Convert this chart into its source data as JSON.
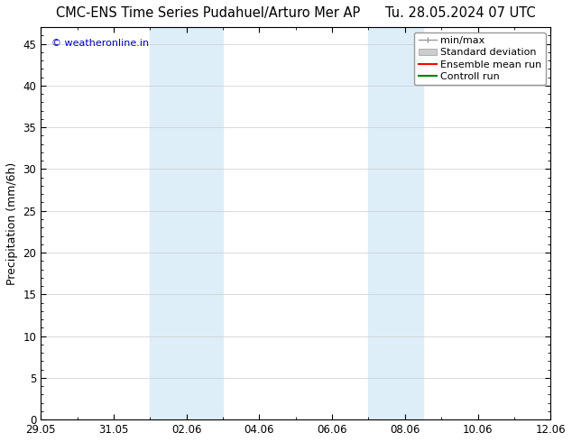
{
  "title": "CMC-ENS Time Series Pudahuel/Arturo Mer AP",
  "date_label": "Tu. 28.05.2024 07 UTC",
  "ylabel": "Precipitation (mm/6h)",
  "watermark": "© weatheronline.in",
  "watermark_color": "#0000cc",
  "background_color": "#ffffff",
  "plot_bg_color": "#ffffff",
  "ylim": [
    0,
    47
  ],
  "yticks": [
    0,
    5,
    10,
    15,
    20,
    25,
    30,
    35,
    40,
    45
  ],
  "xtick_labels": [
    "29.05",
    "31.05",
    "02.06",
    "04.06",
    "06.06",
    "08.06",
    "10.06",
    "12.06"
  ],
  "xtick_positions": [
    0,
    2,
    4,
    6,
    8,
    10,
    12,
    14
  ],
  "x_min": 0,
  "x_max": 14,
  "shaded_regions": [
    {
      "x_start": 3.0,
      "x_end": 5.0
    },
    {
      "x_start": 9.0,
      "x_end": 10.5
    }
  ],
  "shaded_color": "#ddeef9",
  "grid_color": "#cccccc",
  "tick_color": "#000000",
  "title_fontsize": 10.5,
  "axis_label_fontsize": 9,
  "tick_fontsize": 8.5,
  "legend_fontsize": 8
}
